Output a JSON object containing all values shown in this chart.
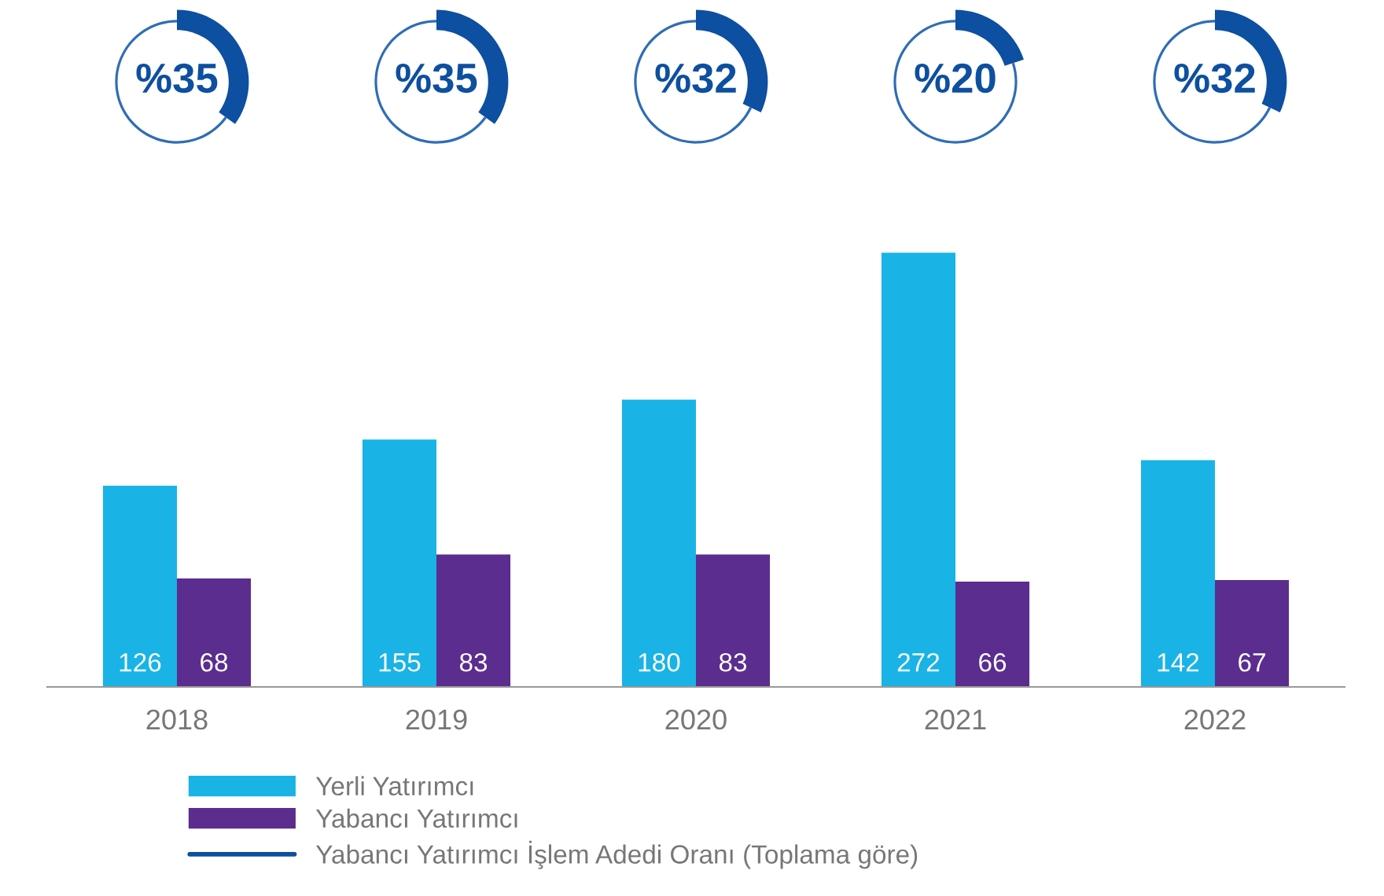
{
  "chart_data": [
    {
      "type": "bar",
      "categories": [
        "2018",
        "2019",
        "2020",
        "2021",
        "2022"
      ],
      "series": [
        {
          "name": "Yerli Yatırımcı",
          "color": "#19b3e6",
          "values": [
            126,
            155,
            180,
            272,
            142
          ]
        },
        {
          "name": "Yabancı Yatırımcı",
          "color": "#5b2d8e",
          "values": [
            68,
            83,
            83,
            66,
            67
          ]
        }
      ],
      "data_labels": true,
      "legend": "bottom left"
    },
    {
      "type": "donut",
      "categories": [
        null,
        null
      ],
      "series": [
        {
          "name": "Yabancı Yatırımcı İşlem Adedi Oranı (Toplama göre)",
          "color": "#0d4fa0",
          "values": [
            35,
            65
          ]
        }
      ],
      "colors": [
        "#0d4fa0",
        "#2f6db5"
      ],
      "value_labels": [
        "%35",
        null
      ]
    },
    {
      "type": "donut",
      "categories": [
        null,
        null
      ],
      "values": [
        35,
        65
      ],
      "colors": [
        "#0d4fa0",
        "#2f6db5"
      ],
      "value_labels": [
        "%35",
        null
      ]
    },
    {
      "type": "donut",
      "categories": [
        null,
        null
      ],
      "values": [
        32,
        68
      ],
      "colors": [
        "#0d4fa0",
        "#2f6db5"
      ],
      "value_labels": [
        "%32",
        null
      ]
    },
    {
      "type": "donut",
      "categories": [
        null,
        null
      ],
      "values": [
        20,
        80
      ],
      "colors": [
        "#0d4fa0",
        "#2f6db5"
      ],
      "value_labels": [
        "%20",
        null
      ]
    },
    {
      "type": "donut",
      "categories": [
        null,
        null
      ],
      "values": [
        32,
        68
      ],
      "colors": [
        "#0d4fa0",
        "#2f6db5"
      ],
      "value_labels": [
        "%32",
        null
      ]
    }
  ]
}
